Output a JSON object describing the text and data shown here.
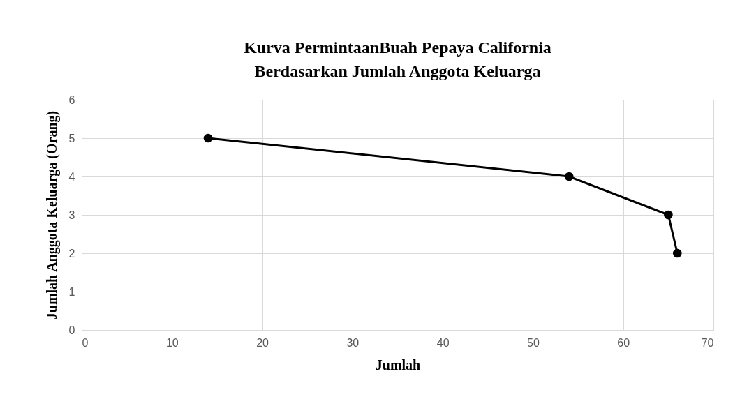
{
  "chart_data": {
    "type": "line",
    "title": "Kurva PermintaanBuah Pepaya California\nBerdasarkan Jumlah Anggota Keluarga",
    "xlabel": "Jumlah",
    "ylabel": "Jumlah Anggota Keluarga (Orang)",
    "x": [
      14,
      54,
      65,
      66
    ],
    "series": [
      {
        "color": "#000000",
        "values": [
          5,
          4,
          3,
          2
        ]
      }
    ],
    "xlim": [
      0,
      70
    ],
    "xticks": [
      0,
      10,
      20,
      30,
      40,
      50,
      60,
      70
    ],
    "ylim": [
      0,
      6
    ],
    "yticks": [
      0,
      1,
      2,
      3,
      4,
      5,
      6
    ],
    "grid": true,
    "marker": "circle",
    "line_style": "solid"
  }
}
